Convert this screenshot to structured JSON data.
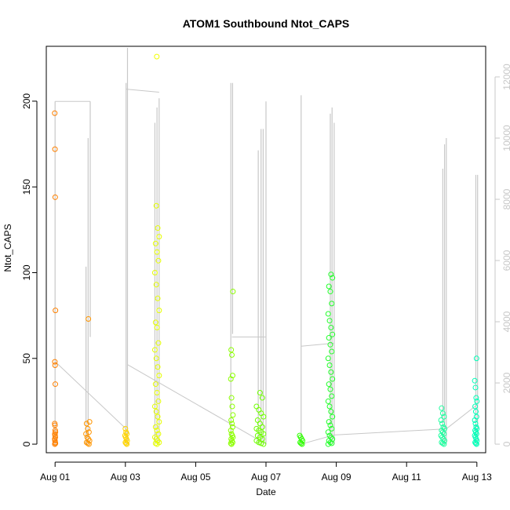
{
  "chart_data": {
    "type": "scatter",
    "title": "ATOM1 Southbound Ntot_CAPS",
    "xlabel": "Date",
    "ylabel": "Ntot_CAPS",
    "xlim": [
      -0.25,
      12.25
    ],
    "ylim": [
      -5,
      232
    ],
    "y2lim": [
      -280,
      13000
    ],
    "x_ticks": [
      {
        "x": 0,
        "label": "Aug 01"
      },
      {
        "x": 2,
        "label": "Aug 03"
      },
      {
        "x": 4,
        "label": "Aug 05"
      },
      {
        "x": 6,
        "label": "Aug 07"
      },
      {
        "x": 8,
        "label": "Aug 09"
      },
      {
        "x": 10,
        "label": "Aug 11"
      },
      {
        "x": 12,
        "label": "Aug 13"
      }
    ],
    "y_ticks": [
      0,
      50,
      100,
      150,
      200
    ],
    "y2_ticks": [
      0,
      2000,
      4000,
      6000,
      8000,
      10000,
      12000
    ],
    "point_clusters": [
      {
        "x": 0.0,
        "color": "#FF8000",
        "spread": 0.02,
        "values": [
          193,
          172,
          144,
          78,
          48,
          46,
          35,
          12,
          11,
          8,
          7,
          6,
          5,
          4,
          3,
          2,
          1,
          0.5,
          0
        ]
      },
      {
        "x": 0.93,
        "color": "#FF9500",
        "spread": 0.1,
        "values": [
          73,
          13,
          12,
          9,
          7,
          6,
          4,
          3,
          2,
          1,
          0.5,
          0
        ]
      },
      {
        "x": 2.02,
        "color": "#FFD400",
        "spread": 0.06,
        "values": [
          9,
          7,
          6,
          5,
          4,
          3,
          2,
          1,
          0.5,
          0
        ]
      },
      {
        "x": 2.88,
        "color": "#F2FF00",
        "spread": 0.04,
        "values": [
          226
        ]
      },
      {
        "x": 2.9,
        "color": "#E6FF00",
        "spread": 0.12,
        "values": [
          139,
          126,
          121,
          117,
          112,
          107,
          100,
          93,
          85,
          78,
          71,
          68,
          59,
          55,
          50,
          45,
          40,
          35,
          30,
          25,
          22,
          19,
          16,
          13,
          10,
          8,
          6,
          4,
          3,
          2,
          1,
          0.5,
          0
        ]
      },
      {
        "x": 5.03,
        "color": "#8CFF00",
        "spread": 0.06,
        "values": [
          89,
          55,
          52,
          40,
          38,
          27,
          22,
          17,
          14,
          12,
          10,
          8,
          6,
          5,
          4,
          3,
          2,
          1,
          0.5,
          0
        ]
      },
      {
        "x": 5.83,
        "color": "#6FFF00",
        "spread": 0.2,
        "values": [
          30,
          27,
          22,
          20,
          18,
          16,
          14,
          12,
          10,
          9,
          8,
          7,
          6,
          5,
          4,
          3,
          2,
          1,
          0.5,
          0
        ]
      },
      {
        "x": 7.0,
        "color": "#2EFF00",
        "spread": 0.08,
        "values": [
          5,
          4,
          3,
          2,
          1,
          0.5,
          0
        ]
      },
      {
        "x": 7.83,
        "color": "#22FF2A",
        "spread": 0.12,
        "values": [
          99,
          97,
          92,
          89,
          82,
          76,
          72,
          68,
          64,
          62,
          58,
          54,
          50,
          46,
          42,
          38,
          35,
          32,
          28,
          25,
          22,
          19,
          16,
          13,
          11,
          9,
          7,
          5,
          4,
          3,
          2,
          1,
          0.5,
          0
        ]
      },
      {
        "x": 11.03,
        "color": "#1FFFA0",
        "spread": 0.1,
        "values": [
          21,
          18,
          16,
          14,
          12,
          10,
          9,
          8,
          7,
          6,
          5,
          4,
          3,
          2,
          1,
          0.5,
          0
        ]
      },
      {
        "x": 11.97,
        "color": "#00FFB8",
        "spread": 0.06,
        "values": [
          50,
          37,
          33,
          27,
          25,
          22,
          19,
          16,
          14,
          12,
          10,
          9,
          8,
          7,
          6,
          5,
          4,
          3,
          2,
          1,
          0.5,
          0
        ]
      }
    ],
    "secondary_line": {
      "color": "#c8c8c8",
      "spikes": [
        {
          "x": 0.0,
          "top": 11200,
          "base": 0
        },
        {
          "x": 0.88,
          "top": 5800,
          "base": 0
        },
        {
          "x": 0.94,
          "top": 10000,
          "base": 0
        },
        {
          "x": 1.0,
          "top": 11200,
          "base": 3500
        },
        {
          "x": 2.02,
          "top": 11800,
          "base": 0
        },
        {
          "x": 2.06,
          "top": 12950,
          "base": 0
        },
        {
          "x": 2.84,
          "top": 10500,
          "base": 0
        },
        {
          "x": 2.9,
          "top": 11000,
          "base": 0
        },
        {
          "x": 2.96,
          "top": 11300,
          "base": 0
        },
        {
          "x": 5.0,
          "top": 11800,
          "base": 0
        },
        {
          "x": 5.05,
          "top": 11800,
          "base": 3600
        },
        {
          "x": 5.78,
          "top": 9600,
          "base": 0
        },
        {
          "x": 5.86,
          "top": 10300,
          "base": 0
        },
        {
          "x": 5.92,
          "top": 10300,
          "base": 0
        },
        {
          "x": 6.0,
          "top": 11200,
          "base": 0
        },
        {
          "x": 7.0,
          "top": 11400,
          "base": 0
        },
        {
          "x": 7.83,
          "top": 10800,
          "base": 0
        },
        {
          "x": 7.88,
          "top": 11000,
          "base": 0
        },
        {
          "x": 7.94,
          "top": 10500,
          "base": 0
        },
        {
          "x": 11.03,
          "top": 9000,
          "base": 0
        },
        {
          "x": 11.08,
          "top": 9800,
          "base": 0
        },
        {
          "x": 11.13,
          "top": 10000,
          "base": 0
        },
        {
          "x": 11.97,
          "top": 8800,
          "base": 0
        },
        {
          "x": 12.02,
          "top": 8800,
          "base": 0
        }
      ],
      "connectors": [
        [
          0.0,
          11200,
          1.0,
          11200
        ],
        [
          0.0,
          2700,
          2.02,
          500
        ],
        [
          2.02,
          11600,
          2.96,
          11500
        ],
        [
          2.06,
          2600,
          6.0,
          0
        ],
        [
          5.03,
          3500,
          6.0,
          3500
        ],
        [
          7.0,
          3200,
          7.94,
          3300
        ],
        [
          7.0,
          0,
          7.94,
          300
        ],
        [
          7.94,
          300,
          11.13,
          500
        ],
        [
          11.13,
          500,
          12.02,
          1300
        ]
      ]
    }
  }
}
